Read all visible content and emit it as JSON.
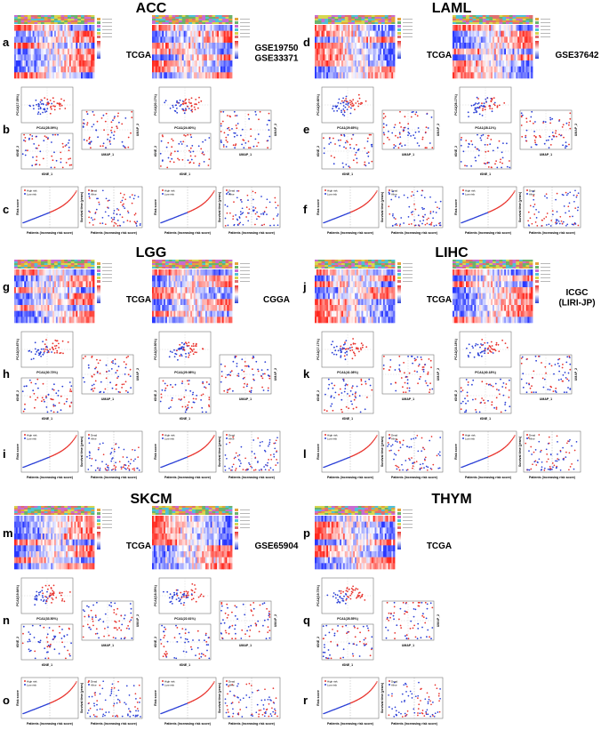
{
  "cancers": [
    {
      "name": "ACC",
      "datasets": [
        "TCGA",
        "GSE19750\nGSE33371"
      ],
      "rows": [
        "a",
        "b",
        "c"
      ]
    },
    {
      "name": "LAML",
      "datasets": [
        "TCGA",
        "GSE37642"
      ],
      "rows": [
        "d",
        "e",
        "f"
      ]
    },
    {
      "name": "LGG",
      "datasets": [
        "TCGA",
        "CGGA"
      ],
      "rows": [
        "g",
        "h",
        "i"
      ]
    },
    {
      "name": "LIHC",
      "datasets": [
        "TCGA",
        "ICGC\n(LIRI-JP)"
      ],
      "rows": [
        "j",
        "k",
        "l"
      ]
    },
    {
      "name": "SKCM",
      "datasets": [
        "TCGA",
        "GSE65904"
      ],
      "rows": [
        "m",
        "n",
        "o"
      ]
    },
    {
      "name": "THYM",
      "datasets": [
        "TCGA"
      ],
      "rows": [
        "p",
        "q",
        "r"
      ]
    }
  ],
  "axis_labels": {
    "umap_x": "UMAP_1",
    "umap_y": "UMAP_2",
    "tsne_x": "tSNE_1",
    "tsne_y": "tSNE_2",
    "risk_x": "Patients (increasing risk score)",
    "risk_y": "Risk score",
    "surv_y": "Survival time (years)"
  },
  "pca_labels": [
    {
      "x": "PCA1(28.09%)",
      "y": "PCA2(17.05%)"
    },
    {
      "x": "PCA1(24.60%)",
      "y": "PCA2(20.17%)"
    },
    {
      "x": "PCA1(29.65%)",
      "y": "PCA2(20.60%)"
    },
    {
      "x": "PCA1(28.11%)",
      "y": "PCA2(28.17%)"
    },
    {
      "x": "PCA1(30.73%)",
      "y": "PCA2(19.87%)"
    },
    {
      "x": "PCA1(29.98%)",
      "y": "PCA2(19.50%)"
    },
    {
      "x": "PCA1(41.08%)",
      "y": "PCA2(17.17%)"
    },
    {
      "x": "PCA1(40.18%)",
      "y": "PCA2(18.18%)"
    },
    {
      "x": "PCA1(33.50%)",
      "y": "PCA2(19.64%)"
    },
    {
      "x": "PCA1(22.61%)",
      "y": "PCA2(18.05%)"
    },
    {
      "x": "PCA1(28.55%)",
      "y": "PCA2(19.73%)"
    }
  ],
  "legend": {
    "risk": [
      "High risk",
      "Low risk"
    ],
    "status": [
      "Dead",
      "Alive"
    ],
    "groups": [
      "high",
      "low"
    ]
  },
  "colors": {
    "high": "#e8322c",
    "low": "#2a3fd6",
    "mid": "#ffffff"
  }
}
